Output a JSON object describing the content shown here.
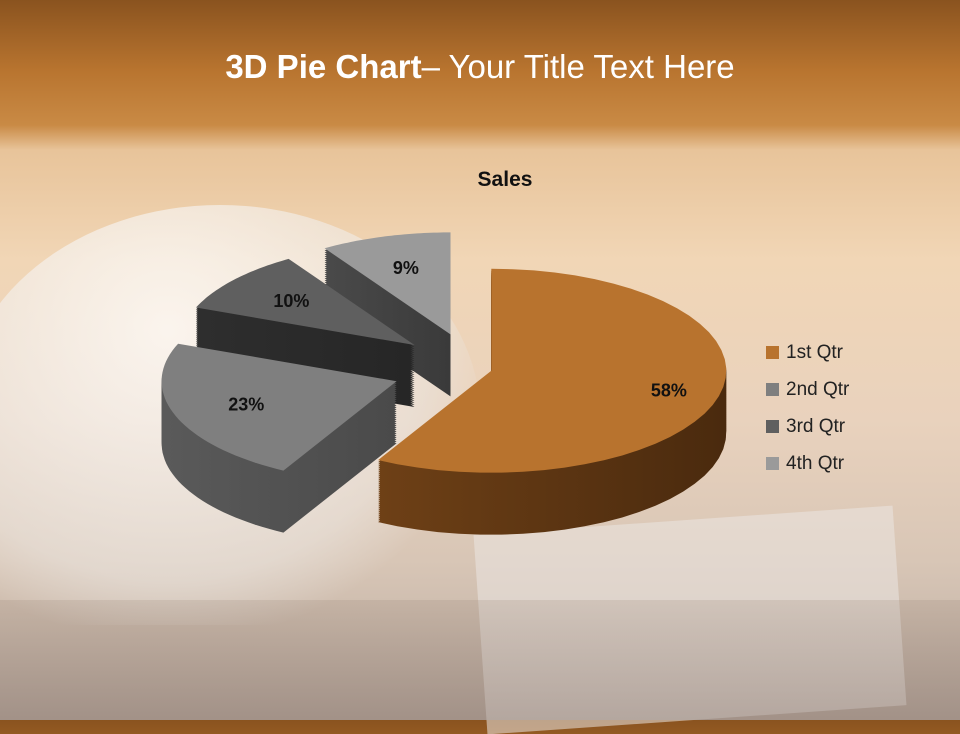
{
  "slide": {
    "title_bold": "3D Pie Chart",
    "title_rest": "– Your Title Text Here"
  },
  "chart_data": {
    "type": "pie",
    "variant": "3d-exploded",
    "title": "Sales",
    "categories": [
      "1st Qtr",
      "2nd Qtr",
      "3rd Qtr",
      "4th Qtr"
    ],
    "values": [
      58,
      23,
      10,
      9
    ],
    "data_labels": [
      "58%",
      "23%",
      "10%",
      "9%"
    ],
    "colors": [
      "#b8732e",
      "#7f7f7f",
      "#5f5f5f",
      "#9a9a9a"
    ],
    "legend_position": "right"
  }
}
